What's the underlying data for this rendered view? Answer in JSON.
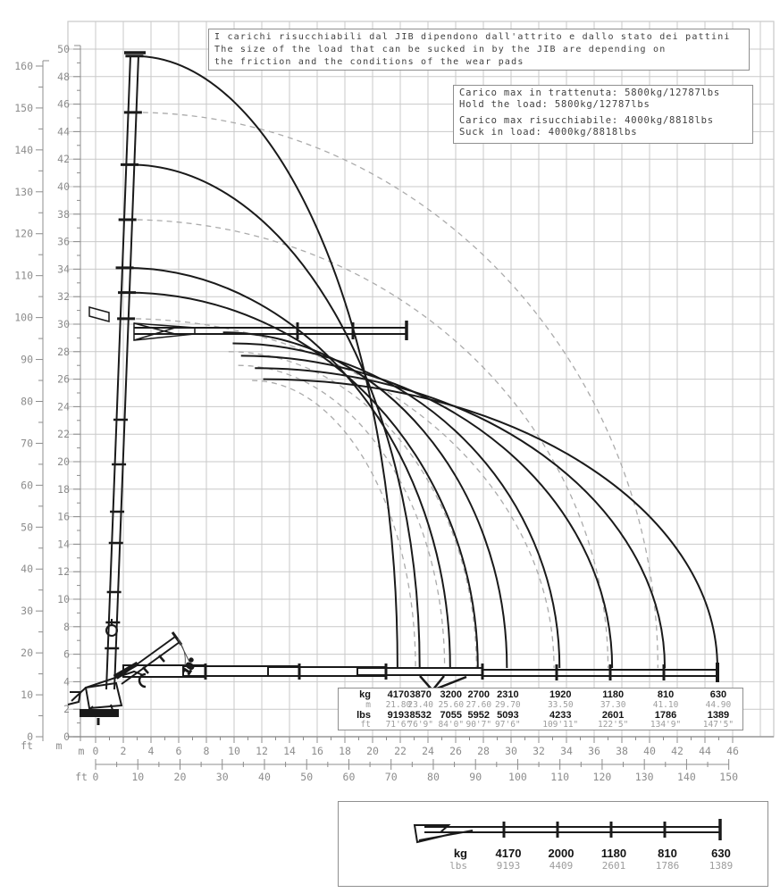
{
  "notes_box": {
    "lines": [
      "I carichi risucchiabili dal JIB dipendono dall'attrito e dallo stato dei pattini",
      "The size of the load that can be sucked in by the JIB are depending on",
      "the friction and the conditions of the wear pads"
    ]
  },
  "load_box": {
    "lines": [
      "Carico max in trattenuta: 5800kg/12787lbs",
      "Hold the load: 5800kg/12787lbs",
      "",
      "Carico max risucchiabile: 4000kg/8818lbs",
      "Suck in load: 4000kg/8818lbs"
    ]
  },
  "chart_data": {
    "type": "line",
    "title": "",
    "x_axis": {
      "m": {
        "min": 0,
        "max": 46,
        "step": 2,
        "unit": "m"
      },
      "ft": {
        "min": 0,
        "max": 150,
        "step": 10,
        "unit": "ft"
      }
    },
    "y_axis": {
      "m": {
        "min": 0,
        "max": 50,
        "step": 2,
        "unit": "m"
      },
      "ft": {
        "min": 0,
        "max": 160,
        "step": 10,
        "unit": "ft"
      }
    },
    "grid": "2 m square grid, light gray",
    "legend_position": "none",
    "load_points": [
      {
        "kg": "4170",
        "m": "21.80",
        "lbs": "9193",
        "ft": "71'6\""
      },
      {
        "kg": "3870",
        "m": "23.40",
        "lbs": "8532",
        "ft": "76'9\""
      },
      {
        "kg": "3200",
        "m": "25.60",
        "lbs": "7055",
        "ft": "84'0\""
      },
      {
        "kg": "2700",
        "m": "27.60",
        "lbs": "5952",
        "ft": "90'7\""
      },
      {
        "kg": "2310",
        "m": "29.70",
        "lbs": "5093",
        "ft": "97'6\""
      },
      {
        "kg": "1920",
        "m": "33.50",
        "lbs": "4233",
        "ft": "109'11\""
      },
      {
        "kg": "1180",
        "m": "37.30",
        "lbs": "2601",
        "ft": "122'5\""
      },
      {
        "kg": "810",
        "m": "41.10",
        "lbs": "1786",
        "ft": "134'9\""
      },
      {
        "kg": "630",
        "m": "44.90",
        "lbs": "1389",
        "ft": "147'5\""
      }
    ],
    "solid_curve_starts_m": [
      [
        12.1,
        26.0
      ],
      [
        11.5,
        26.8
      ],
      [
        10.5,
        27.7
      ],
      [
        9.9,
        28.6
      ],
      [
        9.2,
        29.4
      ],
      [
        2.26,
        32.3
      ],
      [
        2.1,
        34.1
      ],
      [
        2.45,
        41.6
      ],
      [
        2.8,
        49.5
      ]
    ],
    "dashed_curves_m": [
      {
        "start": [
          2.7,
          45.4
        ],
        "end": [
          40.6,
          5.0
        ]
      },
      {
        "start": [
          2.3,
          37.6
        ],
        "end": [
          37.0,
          5.0
        ]
      },
      {
        "start": [
          2.2,
          30.4
        ],
        "end": [
          33.1,
          5.0
        ]
      },
      {
        "start": [
          9.6,
          28.0
        ],
        "end": [
          27.5,
          5.0
        ]
      },
      {
        "start": [
          10.3,
          27.0
        ],
        "end": [
          25.2,
          5.0
        ]
      },
      {
        "start": [
          11.3,
          25.9
        ],
        "end": [
          23.1,
          5.0
        ]
      }
    ],
    "jib_angle_label": "10°"
  },
  "capacity_table": {
    "row_headers": [
      "kg",
      "m",
      "lbs",
      "ft"
    ]
  },
  "jib_legend": {
    "row_headers": [
      "kg",
      "lbs"
    ],
    "points": [
      {
        "kg": "4170",
        "lbs": "9193"
      },
      {
        "kg": "2000",
        "lbs": "4409"
      },
      {
        "kg": "1180",
        "lbs": "2601"
      },
      {
        "kg": "810",
        "lbs": "1786"
      },
      {
        "kg": "630",
        "lbs": "1389"
      }
    ]
  },
  "colors": {
    "curve": "#1a1a1a",
    "dashed_curve": "#ababab",
    "grid": "#c9c9c9",
    "axis_text": "#8c8c8c",
    "box_border": "#8f8f8f",
    "note_text": "#3f3f3f",
    "value_text": "#141414",
    "muted_value_text": "#9c9c9c"
  }
}
